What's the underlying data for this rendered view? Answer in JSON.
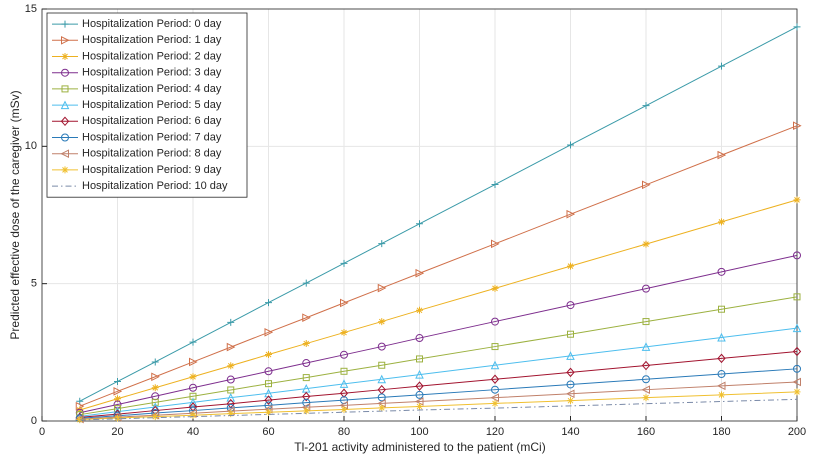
{
  "chart_data": {
    "type": "line",
    "x_label": "Tl-201 activity administered to the patient (mCi)",
    "y_label": "Predicted effective dose of the caregiver (mSv)",
    "x": [
      10,
      20,
      30,
      40,
      50,
      60,
      70,
      80,
      90,
      100,
      120,
      140,
      160,
      180,
      200
    ],
    "xlim": [
      0,
      200
    ],
    "xticks": [
      0,
      20,
      40,
      60,
      80,
      100,
      120,
      140,
      160,
      180,
      200
    ],
    "ylim": [
      0,
      15
    ],
    "yticks": [
      0,
      5,
      10,
      15
    ],
    "grid": true,
    "legend": "northwest",
    "series": [
      {
        "name": "Hospitalization Period: 0 day",
        "color": "#3a9aa8",
        "marker": "plus",
        "values": [
          0.72,
          1.44,
          2.15,
          2.87,
          3.59,
          4.31,
          5.02,
          5.74,
          6.46,
          7.18,
          8.61,
          10.05,
          11.48,
          12.92,
          14.35
        ]
      },
      {
        "name": "Hospitalization Period: 1 day",
        "color": "#d0704a",
        "marker": "triangle-right",
        "values": [
          0.54,
          1.08,
          1.61,
          2.15,
          2.69,
          3.23,
          3.76,
          4.3,
          4.84,
          5.38,
          6.45,
          7.53,
          8.6,
          9.68,
          10.75
        ]
      },
      {
        "name": "Hospitalization Period: 2 day",
        "color": "#edb120",
        "marker": "star",
        "values": [
          0.4,
          0.81,
          1.21,
          1.61,
          2.01,
          2.42,
          2.82,
          3.22,
          3.62,
          4.03,
          4.83,
          5.64,
          6.44,
          7.25,
          8.05
        ]
      },
      {
        "name": "Hospitalization Period: 3 day",
        "color": "#7e2f8e",
        "marker": "circle",
        "values": [
          0.3,
          0.6,
          0.9,
          1.21,
          1.51,
          1.81,
          2.11,
          2.41,
          2.71,
          3.02,
          3.62,
          4.22,
          4.82,
          5.43,
          6.03
        ]
      },
      {
        "name": "Hospitalization Period: 4 day",
        "color": "#9cb140",
        "marker": "square",
        "values": [
          0.23,
          0.45,
          0.68,
          0.9,
          1.13,
          1.36,
          1.58,
          1.81,
          2.03,
          2.26,
          2.71,
          3.16,
          3.62,
          4.07,
          4.52
        ]
      },
      {
        "name": "Hospitalization Period: 5 day",
        "color": "#4dbeee",
        "marker": "triangle-up",
        "values": [
          0.17,
          0.34,
          0.51,
          0.68,
          0.85,
          1.01,
          1.18,
          1.35,
          1.52,
          1.69,
          2.03,
          2.37,
          2.7,
          3.04,
          3.38
        ]
      },
      {
        "name": "Hospitalization Period: 6 day",
        "color": "#a2142f",
        "marker": "diamond",
        "values": [
          0.13,
          0.25,
          0.38,
          0.51,
          0.63,
          0.76,
          0.89,
          1.01,
          1.14,
          1.27,
          1.52,
          1.77,
          2.02,
          2.28,
          2.53
        ]
      },
      {
        "name": "Hospitalization Period: 7 day",
        "color": "#2a7ab8",
        "marker": "circle",
        "values": [
          0.1,
          0.19,
          0.29,
          0.38,
          0.48,
          0.57,
          0.67,
          0.76,
          0.86,
          0.95,
          1.14,
          1.33,
          1.52,
          1.71,
          1.9
        ]
      },
      {
        "name": "Hospitalization Period: 8 day",
        "color": "#c0806a",
        "marker": "triangle-left",
        "values": [
          0.07,
          0.14,
          0.21,
          0.28,
          0.36,
          0.43,
          0.5,
          0.57,
          0.64,
          0.71,
          0.85,
          0.99,
          1.14,
          1.28,
          1.42
        ]
      },
      {
        "name": "Hospitalization Period: 9 day",
        "color": "#f0c030",
        "marker": "star",
        "values": [
          0.05,
          0.11,
          0.16,
          0.21,
          0.27,
          0.32,
          0.37,
          0.42,
          0.48,
          0.53,
          0.64,
          0.74,
          0.85,
          0.95,
          1.06
        ]
      },
      {
        "name": "Hospitalization Period: 10 day",
        "color": "#7a8aa8",
        "marker": "none",
        "line_style": "dash-dot",
        "values": [
          0.04,
          0.08,
          0.12,
          0.16,
          0.2,
          0.24,
          0.28,
          0.32,
          0.36,
          0.4,
          0.47,
          0.55,
          0.63,
          0.71,
          0.79
        ]
      }
    ]
  }
}
